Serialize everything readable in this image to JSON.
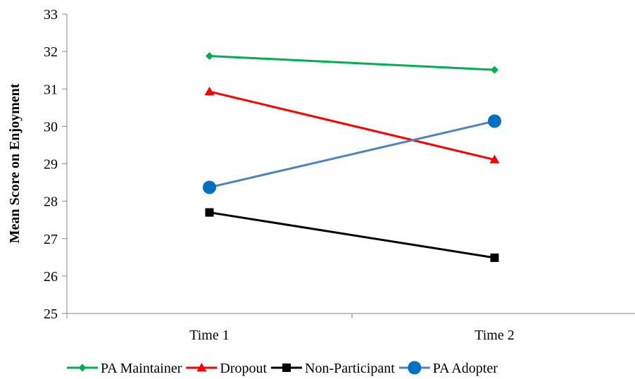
{
  "chart_data": {
    "type": "line",
    "title": "",
    "xlabel": "",
    "ylabel": "Mean Score on Enjoyment",
    "categories": [
      "Time 1",
      "Time 2"
    ],
    "ylim": [
      25,
      33
    ],
    "yticks": [
      25,
      26,
      27,
      28,
      29,
      30,
      31,
      32,
      33
    ],
    "grid": false,
    "legend_position": "bottom",
    "series": [
      {
        "name": "PA Maintainer",
        "values": [
          31.88,
          31.51
        ],
        "color": "#00B050",
        "marker": "diamond"
      },
      {
        "name": "Dropout",
        "values": [
          30.93,
          29.11
        ],
        "color": "#FF0000",
        "marker": "triangle"
      },
      {
        "name": "Non-Participant",
        "values": [
          27.7,
          26.49
        ],
        "color": "#000000",
        "marker": "square"
      },
      {
        "name": "PA Adopter",
        "values": [
          28.37,
          30.14
        ],
        "color": "#4F81BD",
        "marker_color": "#0070C0",
        "marker": "circle"
      }
    ]
  }
}
